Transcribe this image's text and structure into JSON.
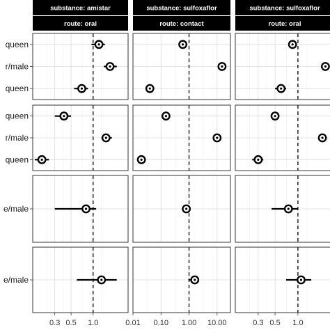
{
  "chart_data": {
    "type": "scatter",
    "subtype": "forest-plot",
    "ref_value": 1.0,
    "x_scale": "log",
    "columns": [
      {
        "strip": [
          "substance: amistar",
          "route: oral"
        ],
        "xlim": [
          0.15,
          3.0
        ],
        "major_ticks": [
          0.3,
          0.5,
          1.0
        ],
        "tick_labels": [
          "0.3",
          "0.5",
          "1.0"
        ]
      },
      {
        "strip": [
          "substance: sulfoxaflor",
          "route: contact"
        ],
        "xlim": [
          0.01,
          30
        ],
        "major_ticks": [
          0.01,
          0.1,
          1.0,
          10.0
        ],
        "tick_labels": [
          "0.01",
          "0.10",
          "1.00",
          "10.00"
        ]
      },
      {
        "strip": [
          "substance: sulfoxaflor",
          "route: oral"
        ],
        "xlim": [
          0.15,
          3.0
        ],
        "major_ticks": [
          0.3,
          0.5,
          1.0
        ],
        "tick_labels": [
          "0.3",
          "0.5",
          "1.0"
        ]
      }
    ],
    "rows": [
      {
        "labels": [
          "queen",
          "r/male",
          "queen"
        ]
      },
      {
        "labels": [
          "queen",
          "r/male",
          "queen"
        ]
      },
      {
        "labels": [
          "e/male"
        ]
      },
      {
        "labels": [
          "e/male"
        ]
      }
    ],
    "points": [
      [
        [
          {
            "est": 1.2,
            "lo": 0.95,
            "hi": 1.45
          },
          {
            "est": 1.7,
            "lo": 1.4,
            "hi": 2.1
          },
          {
            "est": 0.7,
            "lo": 0.55,
            "hi": 0.85
          }
        ],
        [
          {
            "est": 0.4,
            "lo": 0.3,
            "hi": 0.5
          },
          {
            "est": 1.5,
            "lo": 1.3,
            "hi": 1.8
          },
          {
            "est": 0.2,
            "lo": 0.16,
            "hi": 0.25
          }
        ],
        [
          {
            "est": 0.8,
            "lo": 0.3,
            "hi": 1.1
          }
        ],
        [
          {
            "est": 1.3,
            "lo": 0.6,
            "hi": 2.1
          }
        ]
      ],
      [
        [
          {
            "est": 0.6,
            "lo": 0.5,
            "hi": 0.75
          },
          {
            "est": 15,
            "lo": 12,
            "hi": 18
          },
          {
            "est": 0.04,
            "lo": 0.03,
            "hi": 0.05
          }
        ],
        [
          {
            "est": 0.15,
            "lo": 0.12,
            "hi": 0.18
          },
          {
            "est": 10,
            "lo": 8,
            "hi": 12
          },
          {
            "est": 0.02,
            "lo": 0.015,
            "hi": 0.025
          }
        ],
        [
          {
            "est": 0.8,
            "lo": 0.55,
            "hi": 1.1
          }
        ],
        [
          {
            "est": 1.6,
            "lo": 0.95,
            "hi": 2.0
          }
        ]
      ],
      [
        [
          {
            "est": 0.85,
            "lo": 0.75,
            "hi": 0.95
          },
          {
            "est": 2.3,
            "lo": 2.1,
            "hi": 2.6
          },
          {
            "est": 0.6,
            "lo": 0.5,
            "hi": 0.7
          }
        ],
        [
          {
            "est": 0.5,
            "lo": 0.45,
            "hi": 0.56
          },
          {
            "est": 2.1,
            "lo": 1.9,
            "hi": 2.4
          },
          {
            "est": 0.3,
            "lo": 0.25,
            "hi": 0.35
          }
        ],
        [
          {
            "est": 0.75,
            "lo": 0.45,
            "hi": 1.0
          }
        ],
        [
          {
            "est": 1.1,
            "lo": 0.7,
            "hi": 1.5
          }
        ]
      ]
    ],
    "colors": {
      "strip": "#000000",
      "strip_text": "#ffffff",
      "point": "#000000",
      "grid": "#dcdcdc"
    }
  }
}
